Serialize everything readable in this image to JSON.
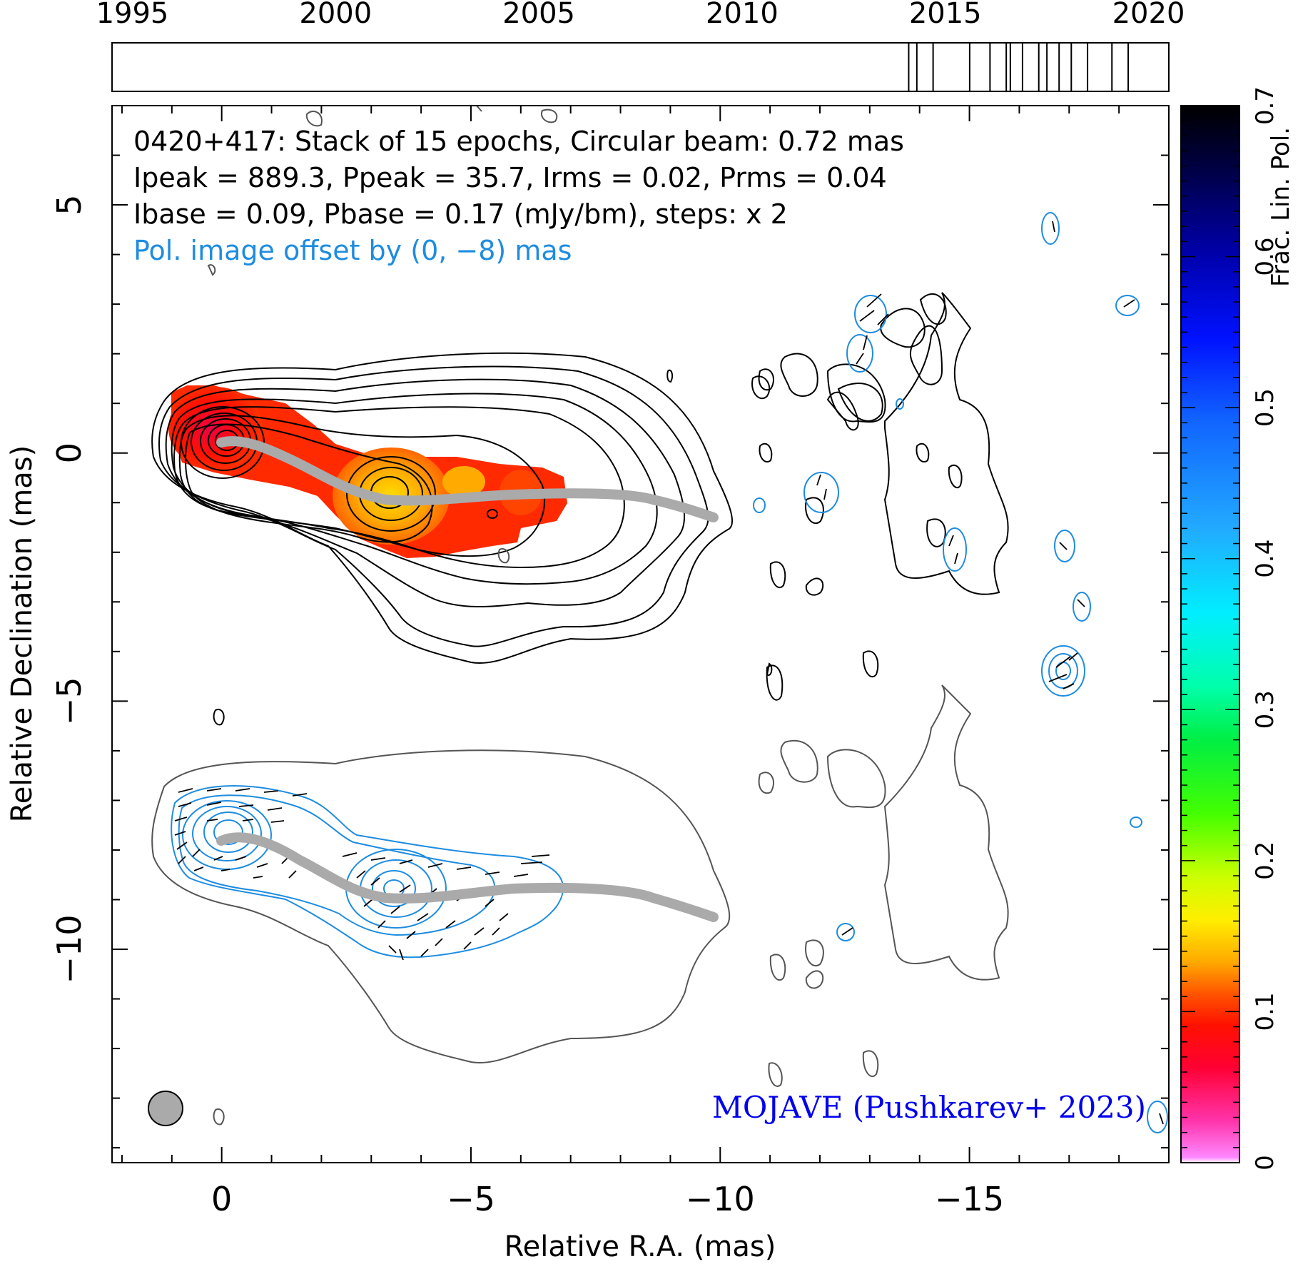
{
  "chart_data": {
    "type": "contour",
    "source": "0420+417",
    "title_lines": [
      "0420+417: Stack of 15 epochs, Circular beam: 0.72 mas",
      "Ipeak = 889.3, Ppeak = 35.7, Irms = 0.02, Prms = 0.04",
      "Ibase = 0.09, Pbase = 0.17 (mJy/bm), steps: x 2"
    ],
    "offset_note": "Pol. image offset by (0, −8) mas",
    "credit": "MOJAVE (Pushkarev+ 2023)",
    "xlabel": "Relative R.A. (mas)",
    "ylabel": "Relative Declination (mas)",
    "colorbar_label": "Frac. Lin. Pol.",
    "xlim": [
      2.2,
      -19.0
    ],
    "ylim": [
      -14.3,
      7.0
    ],
    "x_ticks": [
      0,
      -5,
      -10,
      -15
    ],
    "x_tick_labels": [
      "0",
      "−5",
      "−10",
      "−15"
    ],
    "y_ticks": [
      5,
      0,
      -5,
      -10
    ],
    "y_tick_labels": [
      "5",
      "0",
      "−5",
      "−10"
    ],
    "colorbar_range": [
      0,
      0.7
    ],
    "colorbar_ticks": [
      0,
      0.1,
      0.2,
      0.3,
      0.4,
      0.5,
      0.6,
      0.7
    ],
    "colorbar_tick_labels": [
      "0",
      "0.1",
      "0.2",
      "0.3",
      "0.4",
      "0.5",
      "0.6",
      "0.7"
    ],
    "timeline_range": [
      1994.5,
      2020.5
    ],
    "timeline_tick_years": [
      1995,
      2000,
      2005,
      2010,
      2015,
      2020
    ],
    "timeline_labels": [
      "1995",
      "2000",
      "2005",
      "2010",
      "2015",
      "2020"
    ],
    "epochs": [
      2014.1,
      2014.3,
      2014.7,
      2015.6,
      2016.1,
      2016.5,
      2016.6,
      2016.9,
      2017.3,
      2017.5,
      2017.8,
      2018.1,
      2018.5,
      2019.1,
      2019.5
    ],
    "ridge_line": [
      [
        0,
        0
      ],
      [
        -1,
        0
      ],
      [
        -2,
        -0.35
      ],
      [
        -3,
        -0.75
      ],
      [
        -4,
        -1.05
      ],
      [
        -5,
        -1.0
      ],
      [
        -6,
        -0.9
      ],
      [
        -7,
        -0.8
      ],
      [
        -8,
        -0.82
      ],
      [
        -9,
        -1.05
      ],
      [
        -10,
        -1.4
      ]
    ],
    "beam_fwhm_mas": 0.72,
    "colors": {
      "total_intensity_contours": "#000000",
      "pol_intensity_contours": "#1e8ce0",
      "ridge": "#aaaaaa",
      "beam": "#aaaaaa",
      "note_text": "#1e8ce0",
      "credit_text": "#0000ee"
    }
  }
}
